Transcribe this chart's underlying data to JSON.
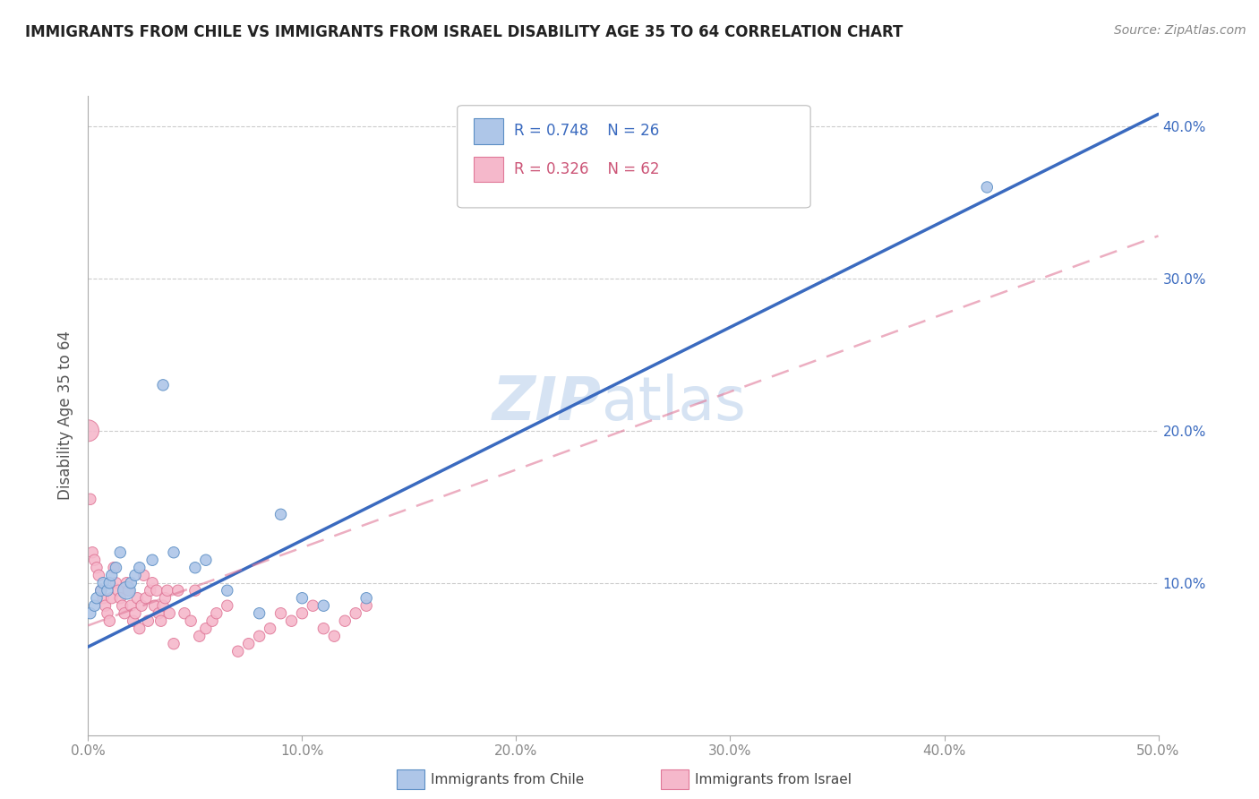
{
  "title": "IMMIGRANTS FROM CHILE VS IMMIGRANTS FROM ISRAEL DISABILITY AGE 35 TO 64 CORRELATION CHART",
  "source": "Source: ZipAtlas.com",
  "ylabel": "Disability Age 35 to 64",
  "xlim": [
    0.0,
    0.5
  ],
  "ylim": [
    0.0,
    0.42
  ],
  "xticks": [
    0.0,
    0.1,
    0.2,
    0.3,
    0.4,
    0.5
  ],
  "yticks": [
    0.1,
    0.2,
    0.3,
    0.4
  ],
  "xticklabels": [
    "0.0%",
    "10.0%",
    "20.0%",
    "30.0%",
    "40.0%",
    "50.0%"
  ],
  "yticklabels_left": [
    "10.0%",
    "20.0%",
    "30.0%",
    "40.0%"
  ],
  "yticklabels_right": [
    "10.0%",
    "20.0%",
    "30.0%",
    "40.0%"
  ],
  "chile_color": "#aec6e8",
  "israel_color": "#f5b8cb",
  "chile_edge": "#5b8ec4",
  "israel_edge": "#e07898",
  "trendline_chile_color": "#3a6abf",
  "trendline_israel_color": "#e07898",
  "legend_R_chile": "R = 0.748",
  "legend_N_chile": "N = 26",
  "legend_R_israel": "R = 0.326",
  "legend_N_israel": "N = 62",
  "watermark_zip": "ZIP",
  "watermark_atlas": "atlas",
  "background_color": "#ffffff",
  "grid_color": "#cccccc",
  "chile_x": [
    0.001,
    0.003,
    0.004,
    0.006,
    0.007,
    0.009,
    0.01,
    0.011,
    0.013,
    0.015,
    0.018,
    0.02,
    0.022,
    0.024,
    0.03,
    0.035,
    0.04,
    0.05,
    0.055,
    0.065,
    0.08,
    0.09,
    0.1,
    0.11,
    0.13,
    0.42
  ],
  "chile_y": [
    0.08,
    0.085,
    0.09,
    0.095,
    0.1,
    0.095,
    0.1,
    0.105,
    0.11,
    0.12,
    0.095,
    0.1,
    0.105,
    0.11,
    0.115,
    0.23,
    0.12,
    0.11,
    0.115,
    0.095,
    0.08,
    0.145,
    0.09,
    0.085,
    0.09,
    0.36
  ],
  "chile_sizes": [
    80,
    80,
    80,
    80,
    80,
    80,
    80,
    80,
    80,
    80,
    200,
    80,
    80,
    80,
    80,
    80,
    80,
    80,
    80,
    80,
    80,
    80,
    80,
    80,
    80,
    80
  ],
  "israel_x": [
    0.0,
    0.001,
    0.002,
    0.003,
    0.004,
    0.005,
    0.006,
    0.007,
    0.008,
    0.009,
    0.01,
    0.011,
    0.012,
    0.013,
    0.014,
    0.015,
    0.016,
    0.017,
    0.018,
    0.019,
    0.02,
    0.021,
    0.022,
    0.023,
    0.024,
    0.025,
    0.026,
    0.027,
    0.028,
    0.029,
    0.03,
    0.031,
    0.032,
    0.033,
    0.034,
    0.035,
    0.036,
    0.037,
    0.038,
    0.04,
    0.042,
    0.045,
    0.048,
    0.05,
    0.052,
    0.055,
    0.058,
    0.06,
    0.065,
    0.07,
    0.075,
    0.08,
    0.085,
    0.09,
    0.095,
    0.1,
    0.105,
    0.11,
    0.115,
    0.12,
    0.125,
    0.13
  ],
  "israel_y": [
    0.2,
    0.155,
    0.12,
    0.115,
    0.11,
    0.105,
    0.095,
    0.09,
    0.085,
    0.08,
    0.075,
    0.09,
    0.11,
    0.1,
    0.095,
    0.09,
    0.085,
    0.08,
    0.1,
    0.095,
    0.085,
    0.075,
    0.08,
    0.09,
    0.07,
    0.085,
    0.105,
    0.09,
    0.075,
    0.095,
    0.1,
    0.085,
    0.095,
    0.08,
    0.075,
    0.085,
    0.09,
    0.095,
    0.08,
    0.06,
    0.095,
    0.08,
    0.075,
    0.095,
    0.065,
    0.07,
    0.075,
    0.08,
    0.085,
    0.055,
    0.06,
    0.065,
    0.07,
    0.08,
    0.075,
    0.08,
    0.085,
    0.07,
    0.065,
    0.075,
    0.08,
    0.085
  ],
  "israel_sizes": [
    300,
    80,
    80,
    80,
    80,
    80,
    80,
    80,
    80,
    80,
    80,
    80,
    80,
    80,
    80,
    80,
    80,
    80,
    80,
    80,
    80,
    80,
    80,
    80,
    80,
    80,
    80,
    80,
    80,
    80,
    80,
    80,
    80,
    80,
    80,
    80,
    80,
    80,
    80,
    80,
    80,
    80,
    80,
    80,
    80,
    80,
    80,
    80,
    80,
    80,
    80,
    80,
    80,
    80,
    80,
    80,
    80,
    80,
    80,
    80,
    80,
    80
  ],
  "chile_trend_x": [
    0.0,
    0.5
  ],
  "chile_trend_y": [
    0.058,
    0.408
  ],
  "israel_trend_x": [
    0.0,
    0.5
  ],
  "israel_trend_y": [
    0.072,
    0.328
  ]
}
